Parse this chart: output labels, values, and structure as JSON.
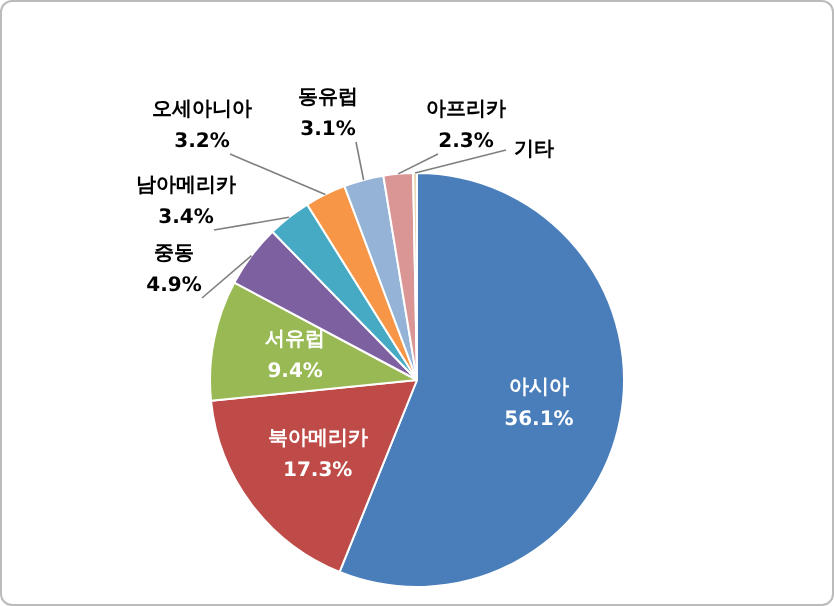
{
  "chart_data": {
    "type": "pie",
    "categories": [
      "아시아",
      "북아메리카",
      "서유럽",
      "중동",
      "남아메리카",
      "오세아니아",
      "동유럽",
      "아프리카",
      "기타"
    ],
    "values": [
      56.1,
      17.3,
      9.4,
      4.9,
      3.4,
      3.2,
      3.1,
      2.3,
      0.3
    ],
    "colors": [
      "#4a7ebb",
      "#be4b48",
      "#98b954",
      "#7d60a0",
      "#46aac5",
      "#f79646",
      "#95b3d7",
      "#d99694",
      "#e8d6b0"
    ],
    "value_labels": [
      "56.1%",
      "17.3%",
      "9.4%",
      "4.9%",
      "3.4%",
      "3.2%",
      "3.1%",
      "2.3%",
      null
    ],
    "legend": false
  }
}
